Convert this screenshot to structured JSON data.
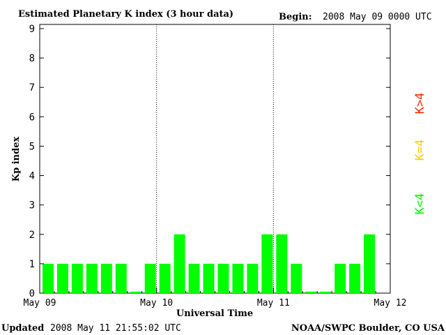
{
  "header": {
    "title": "Estimated Planetary K index (3 hour data)",
    "begin_label": "Begin:",
    "begin_value": "2008 May 09 0000 UTC"
  },
  "footer": {
    "updated_label": "Updated",
    "updated_value": "2008 May 11 21:55:02 UTC",
    "credit": "NOAA/SWPC Boulder, CO USA"
  },
  "legend": {
    "high": "K>4",
    "equal": "K=4",
    "low": "K<4"
  },
  "colors": {
    "low": "#00ff00",
    "equal": "#ffcc00",
    "high": "#ff2a00",
    "axis": "#000000"
  },
  "chart_data": {
    "type": "bar",
    "title": "Estimated Planetary K index (3 hour data)",
    "xlabel": "Universal Time",
    "ylabel": "Kp index",
    "ylim": [
      0,
      9
    ],
    "yticks": [
      "0",
      "1",
      "2",
      "3",
      "4",
      "5",
      "6",
      "7",
      "8",
      "9"
    ],
    "xticks": [
      "May 09",
      "May 10",
      "May 11",
      "May 12"
    ],
    "interval_hours": 3,
    "values": [
      1,
      1,
      1,
      1,
      1,
      1,
      0.05,
      1,
      1,
      2,
      1,
      1,
      1,
      1,
      1,
      2,
      2,
      1,
      0.05,
      0.05,
      1,
      1,
      2
    ],
    "grid": false,
    "day_separators": "dotted",
    "legend_position": "right"
  }
}
